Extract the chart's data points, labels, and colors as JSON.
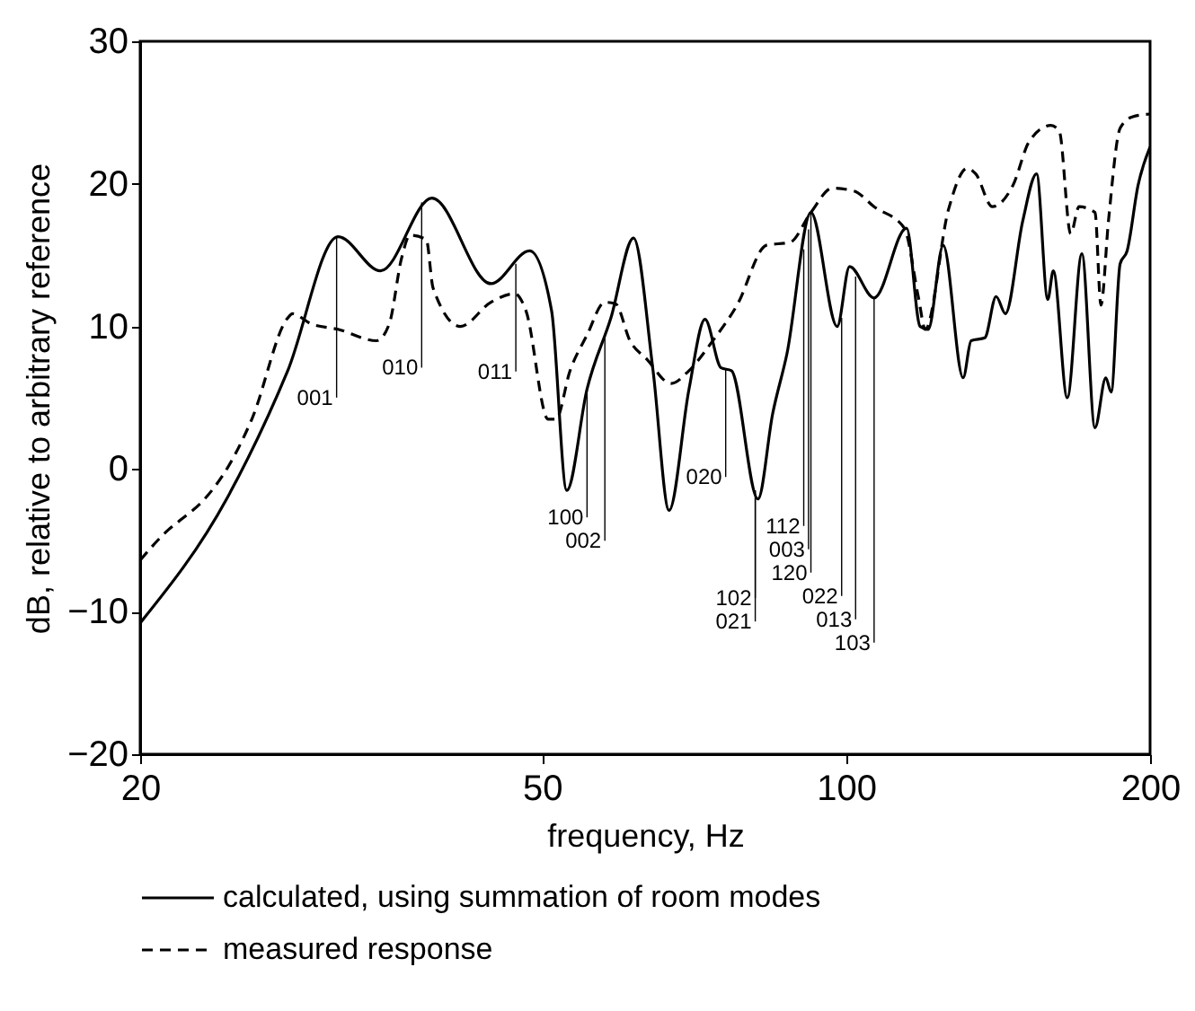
{
  "chart_data": {
    "type": "line",
    "xlabel": "frequency, Hz",
    "ylabel": "dB, relative to arbitrary reference",
    "log": "x",
    "xlim": [
      20,
      200
    ],
    "xticks": [
      20,
      50,
      100,
      200
    ],
    "ylim": [
      -20,
      30
    ],
    "yticks": [
      -20,
      -10,
      0,
      10,
      20,
      30
    ],
    "legend": "bottom",
    "series": [
      {
        "name": "calculated, using summation of room modes",
        "color": "#000000",
        "line_style": "solid",
        "x": [
          20,
          24.4,
          28.0,
          31.4,
          34.6,
          38.9,
          44.5,
          48.6,
          51.1,
          52.9,
          55.4,
          58.5,
          61.6,
          64.4,
          66.8,
          69.9,
          72.5,
          75.2,
          77.0,
          81.8,
          84.6,
          87.4,
          92.3,
          98,
          100.8,
          106.6,
          114.8,
          118.4,
          120.6,
          124.8,
          130.6,
          133,
          137.2,
          140.8,
          143.8,
          149.6,
          154.4,
          158.4,
          160.4,
          165.6,
          171.2,
          176.4,
          180.8,
          183,
          186.8,
          189.8,
          194.6,
          200
        ],
        "values": [
          -10.8,
          -2.0,
          6.9,
          16.3,
          13.9,
          19.0,
          13.0,
          15.3,
          11.1,
          -1.5,
          5.6,
          10.6,
          16.2,
          6.9,
          -2.9,
          5.6,
          10.5,
          7.1,
          6.9,
          -2.1,
          3.9,
          8.1,
          18.0,
          10.0,
          14.2,
          12.0,
          16.9,
          10.0,
          9.8,
          15.7,
          6.4,
          9.0,
          9.2,
          12.1,
          10.9,
          17.4,
          20.7,
          11.9,
          13.9,
          5.0,
          15.1,
          2.9,
          6.4,
          5.4,
          14.4,
          15.3,
          19.9,
          22.6
        ]
      },
      {
        "name": "measured response",
        "color": "#000000",
        "line_style": "dashed",
        "x": [
          20,
          21.3,
          21.9,
          23.1,
          24.6,
          25.8,
          28.0,
          28.3,
          29.5,
          31.4,
          34.3,
          35.3,
          36.3,
          37.0,
          38.4,
          39.0,
          41.5,
          44.5,
          47.0,
          48.2,
          50.7,
          51.6,
          53.3,
          55.4,
          57.7,
          59.1,
          61.1,
          63.5,
          67.1,
          69.9,
          73.8,
          78.0,
          83.4,
          88.0,
          92.3,
          96.9,
          101.8,
          106.6,
          114.2,
          117.9,
          119.8,
          126.3,
          131.8,
          134.4,
          139.6,
          146.3,
          151.9,
          159.5,
          162.6,
          166.9,
          170.1,
          176.4,
          178.8,
          181.9,
          186.8,
          192.0,
          200
        ],
        "values": [
          -6.4,
          -4.3,
          -3.6,
          -2.2,
          0.5,
          3.5,
          10.6,
          10.9,
          10.2,
          9.8,
          9.0,
          10.2,
          14.8,
          16.4,
          16.1,
          12.7,
          10.0,
          11.7,
          12.3,
          11.1,
          3.5,
          3.5,
          6.9,
          9.4,
          11.7,
          11.6,
          9.0,
          7.7,
          6.0,
          6.9,
          9.0,
          11.5,
          15.7,
          15.9,
          18.0,
          19.7,
          19.5,
          18.4,
          16.9,
          12.1,
          9.8,
          18.2,
          21.1,
          20.7,
          18.4,
          19.9,
          23.0,
          24.1,
          23.7,
          16.5,
          18.4,
          18.0,
          11.5,
          17.4,
          23.9,
          24.7,
          24.9
        ]
      }
    ],
    "annotations": [
      {
        "text": "001",
        "x": 31.3,
        "y": 16.3
      },
      {
        "text": "010",
        "x": 38.0,
        "y": 18.7
      },
      {
        "text": "011",
        "x": 47.1,
        "y": 14.4
      },
      {
        "text": "100",
        "x": 55.4,
        "y": 5.6
      },
      {
        "text": "002",
        "x": 57.7,
        "y": 9.5
      },
      {
        "text": "020",
        "x": 76.0,
        "y": 7.0
      },
      {
        "text": "102",
        "x": 81.3,
        "y": -1.5
      },
      {
        "text": "021",
        "x": 81.3,
        "y": -1.5
      },
      {
        "text": "112",
        "x": 90.8,
        "y": 15.4
      },
      {
        "text": "003",
        "x": 91.8,
        "y": 16.8
      },
      {
        "text": "120",
        "x": 92.3,
        "y": 18.0
      },
      {
        "text": "022",
        "x": 99.0,
        "y": 10.6
      },
      {
        "text": "013",
        "x": 102.2,
        "y": 13.5
      },
      {
        "text": "103",
        "x": 106.6,
        "y": 12.0
      }
    ]
  }
}
